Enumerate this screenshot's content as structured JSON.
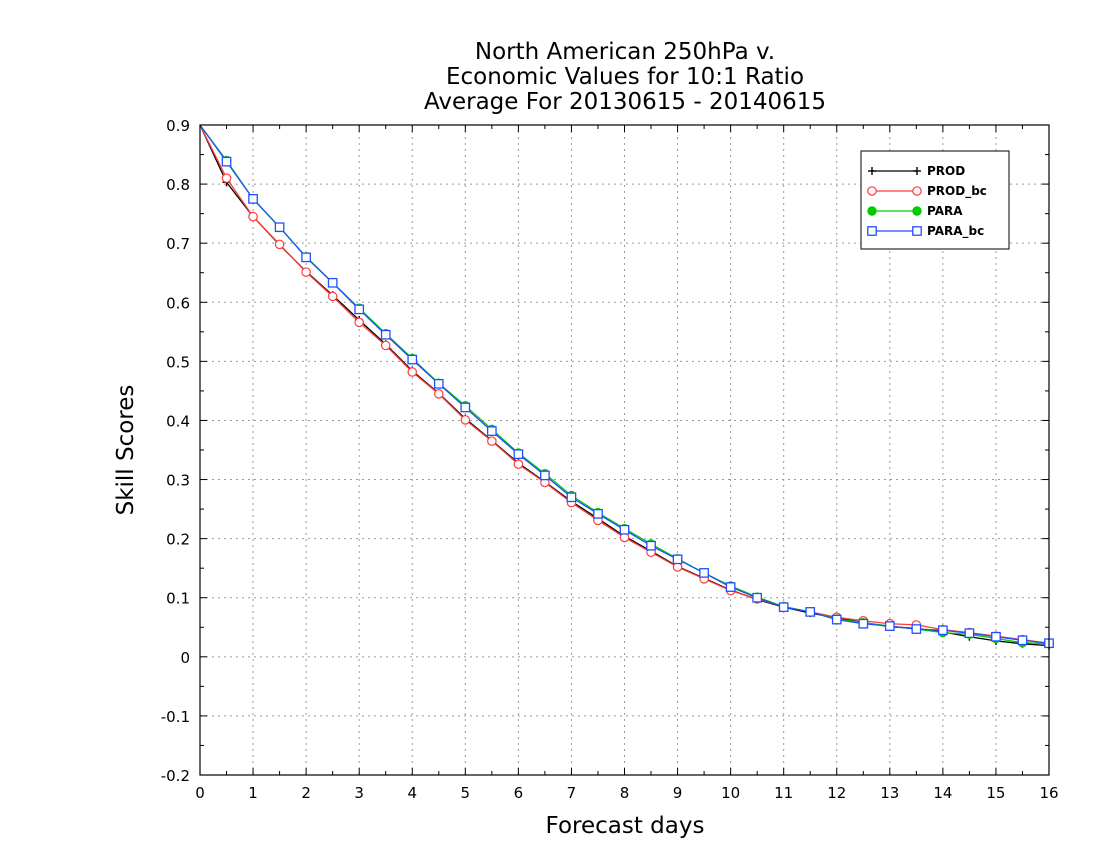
{
  "chart_data": {
    "type": "line",
    "title": [
      "North American 250hPa v.",
      "Economic Values for 10:1 Ratio",
      "Average For 20130615 - 20140615"
    ],
    "xlabel": "Forecast days",
    "ylabel": "Skill Scores",
    "xlim": [
      0,
      16
    ],
    "ylim": [
      -0.2,
      0.9
    ],
    "xticks": [
      "0",
      "1",
      "2",
      "3",
      "4",
      "5",
      "6",
      "7",
      "8",
      "9",
      "10",
      "11",
      "12",
      "13",
      "14",
      "15",
      "16"
    ],
    "yticks": [
      "-0.2",
      "-0.1",
      "0",
      "0.1",
      "0.2",
      "0.3",
      "0.4",
      "0.5",
      "0.6",
      "0.7",
      "0.8",
      "0.9"
    ],
    "grid": true,
    "legend_position": "top-right",
    "x": [
      0,
      0.5,
      1,
      1.5,
      2,
      2.5,
      3,
      3.5,
      4,
      4.5,
      5,
      5.5,
      6,
      6.5,
      7,
      7.5,
      8,
      8.5,
      9,
      9.5,
      10,
      10.5,
      11,
      11.5,
      12,
      12.5,
      13,
      13.5,
      14,
      14.5,
      15,
      15.5,
      16
    ],
    "series": [
      {
        "name": "PROD",
        "color": "#000000",
        "marker": "plus",
        "values": [
          0.9,
          0.803,
          0.745,
          0.697,
          0.652,
          0.612,
          0.57,
          0.529,
          0.484,
          0.446,
          0.403,
          0.366,
          0.328,
          0.296,
          0.263,
          0.234,
          0.204,
          0.179,
          0.153,
          0.133,
          0.113,
          0.097,
          0.084,
          0.074,
          0.066,
          0.058,
          0.051,
          0.048,
          0.042,
          0.034,
          0.027,
          0.022,
          0.019
        ]
      },
      {
        "name": "PROD_bc",
        "color": "#ff3b3b",
        "marker": "circle",
        "values": [
          0.9,
          0.81,
          0.745,
          0.698,
          0.651,
          0.61,
          0.566,
          0.527,
          0.482,
          0.445,
          0.401,
          0.365,
          0.326,
          0.295,
          0.261,
          0.231,
          0.202,
          0.177,
          0.152,
          0.132,
          0.112,
          0.098,
          0.085,
          0.076,
          0.067,
          0.061,
          0.056,
          0.054,
          0.046,
          0.041,
          0.035,
          0.029,
          0.023
        ]
      },
      {
        "name": "PARA",
        "color": "#00cc00",
        "marker": "filled-circle",
        "values": [
          0.9,
          0.84,
          0.775,
          0.727,
          0.677,
          0.633,
          0.59,
          0.547,
          0.505,
          0.463,
          0.425,
          0.385,
          0.345,
          0.31,
          0.273,
          0.244,
          0.217,
          0.191,
          0.166,
          0.142,
          0.12,
          0.101,
          0.085,
          0.076,
          0.064,
          0.058,
          0.052,
          0.047,
          0.041,
          0.038,
          0.031,
          0.024,
          0.022
        ]
      },
      {
        "name": "PARA_bc",
        "color": "#1f4fff",
        "marker": "square",
        "values": [
          0.9,
          0.838,
          0.775,
          0.727,
          0.676,
          0.633,
          0.588,
          0.545,
          0.503,
          0.462,
          0.422,
          0.382,
          0.343,
          0.307,
          0.27,
          0.242,
          0.215,
          0.188,
          0.165,
          0.142,
          0.118,
          0.1,
          0.084,
          0.076,
          0.063,
          0.056,
          0.052,
          0.047,
          0.045,
          0.04,
          0.034,
          0.028,
          0.023
        ]
      }
    ]
  }
}
